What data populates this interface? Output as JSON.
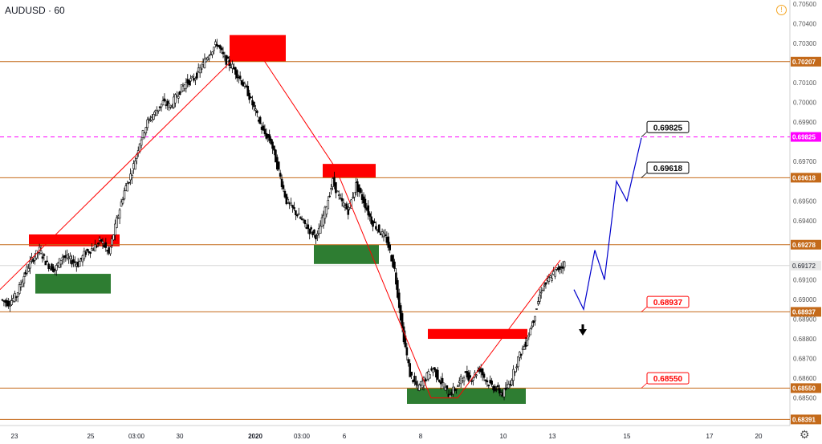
{
  "symbol_title": "AUDUSD · 60",
  "colors": {
    "level_line": "#c46a1a",
    "magenta_level": "#ff00ff",
    "red_zone": "#ff0000",
    "green_zone": "#2e7d32",
    "projection": "#0000cc",
    "zigzag": "#ff0000",
    "candle": "#000000"
  },
  "icons": {
    "info": "info-icon",
    "settings": "gear-icon",
    "arrow": "up-arrow-icon"
  },
  "chart_data": {
    "type": "candlestick",
    "title": "AUDUSD · 60",
    "ylim": [
      0.6836,
      0.7052
    ],
    "x_ticks": [
      "23",
      "25",
      "03:00",
      "30",
      "2020",
      "03:00",
      "6",
      "8",
      "10",
      "13",
      "15",
      "17",
      "20"
    ],
    "y_ticks": [
      "0.70500",
      "0.70400",
      "0.70300",
      "0.70100",
      "0.70000",
      "0.69900",
      "0.69700",
      "0.69500",
      "0.69400",
      "0.69100",
      "0.69000",
      "0.68900",
      "0.68800",
      "0.68700",
      "0.68600",
      "0.68500"
    ],
    "y_tick_values": [
      0.705,
      0.704,
      0.703,
      0.701,
      0.7,
      0.699,
      0.697,
      0.695,
      0.694,
      0.691,
      0.69,
      0.689,
      0.688,
      0.687,
      0.686,
      0.685
    ],
    "levels": [
      {
        "value": 0.70207,
        "label": "0.70207",
        "style": "solid"
      },
      {
        "value": 0.69825,
        "label": "0.69825",
        "style": "dashed-magenta"
      },
      {
        "value": 0.69618,
        "label": "0.69618",
        "style": "solid"
      },
      {
        "value": 0.69278,
        "label": "0.69278",
        "style": "solid"
      },
      {
        "value": 0.68937,
        "label": "0.68937",
        "style": "solid"
      },
      {
        "value": 0.6855,
        "label": "0.68550",
        "style": "solid"
      },
      {
        "value": 0.68391,
        "label": "0.68391",
        "style": "solid"
      }
    ],
    "current_price": {
      "value": 0.69172,
      "label": "0.69172"
    },
    "annotations": [
      {
        "label": "0.69825",
        "color": "black"
      },
      {
        "label": "0.69618",
        "color": "black"
      },
      {
        "label": "0.68937",
        "color": "red"
      },
      {
        "label": "0.68550",
        "color": "red"
      }
    ],
    "price_path": [
      0.69,
      0.6898,
      0.6902,
      0.6912,
      0.692,
      0.6925,
      0.6918,
      0.6915,
      0.6922,
      0.692,
      0.6918,
      0.6924,
      0.6926,
      0.693,
      0.6923,
      0.694,
      0.6955,
      0.6965,
      0.698,
      0.699,
      0.6995,
      0.7,
      0.6998,
      0.7005,
      0.701,
      0.7012,
      0.7018,
      0.7025,
      0.703,
      0.7022,
      0.7018,
      0.7012,
      0.7005,
      0.6995,
      0.6985,
      0.698,
      0.6965,
      0.695,
      0.6945,
      0.694,
      0.6935,
      0.6932,
      0.6945,
      0.696,
      0.695,
      0.6945,
      0.6958,
      0.695,
      0.694,
      0.6935,
      0.693,
      0.6915,
      0.6885,
      0.6862,
      0.6855,
      0.686,
      0.6865,
      0.6858,
      0.6852,
      0.6855,
      0.6862,
      0.686,
      0.6865,
      0.6858,
      0.6855,
      0.6852,
      0.6858,
      0.687,
      0.6878,
      0.689,
      0.6905,
      0.691,
      0.6915,
      0.6918
    ],
    "projection_path": [
      0.6905,
      0.6895,
      0.6925,
      0.691,
      0.696,
      0.695,
      0.6982
    ]
  }
}
